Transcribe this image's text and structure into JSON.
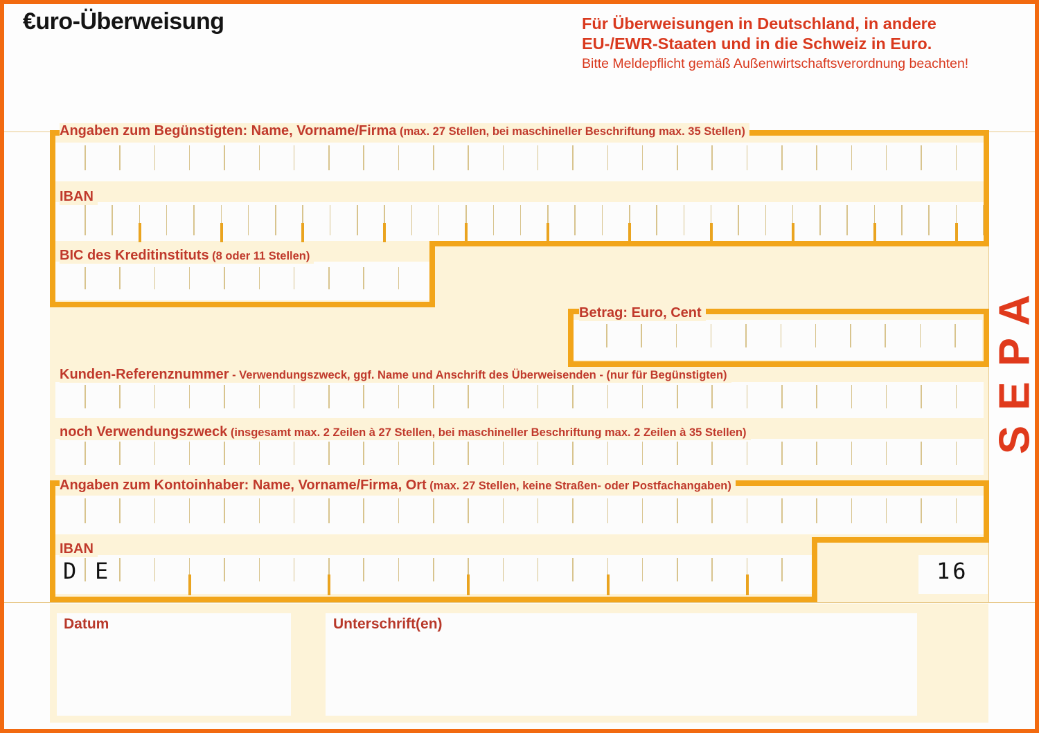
{
  "form": {
    "title": "€uro-Überweisung",
    "notice": {
      "line1": "Für Überweisungen in Deutschland, in andere",
      "line2": "EU-/EWR-Staaten und in die Schweiz in Euro.",
      "line3": "Bitte Meldepflicht gemäß Außenwirtschaftsverordnung beachten!"
    },
    "side_label": "SEPA",
    "colors": {
      "frame": "#f26a10",
      "outline": "#f2a51a",
      "label_red": "#c0392b",
      "band": "#fdf3d8",
      "sepa": "#e03a1c"
    }
  },
  "fields": {
    "beneficiary_name": {
      "label_bold": "Angaben zum Begünstigten:",
      "label_main": " Name, Vorname/Firma",
      "label_hint": " (max. 27 Stellen, bei maschineller Beschriftung max. 35 Stellen)",
      "value": ""
    },
    "beneficiary_iban": {
      "label": "IBAN",
      "value": ""
    },
    "bic": {
      "label_main": "BIC des Kreditinstituts",
      "label_hint": " (8 oder 11 Stellen)",
      "value": ""
    },
    "amount": {
      "label": "Betrag: Euro, Cent",
      "value": ""
    },
    "reference": {
      "label_main": "Kunden-Referenznummer",
      "label_hint": " - Verwendungszweck, ggf. Name und Anschrift des Überweisenden - (nur für Begünstigten)",
      "value": ""
    },
    "purpose_cont": {
      "label_main": "noch Verwendungszweck",
      "label_hint": " (insgesamt max. 2 Zeilen à 27 Stellen, bei maschineller Beschriftung max. 2 Zeilen à 35 Stellen)",
      "value": ""
    },
    "payer_name": {
      "label_bold": "Angaben zum Kontoinhaber:",
      "label_main": " Name, Vorname/Firma, Ort",
      "label_hint": " (max. 27 Stellen, keine Straßen- oder Postfachangaben)",
      "value": ""
    },
    "payer_iban": {
      "label": "IBAN",
      "prefix_1": "D",
      "prefix_2": "E",
      "suffix": "16",
      "value": ""
    },
    "date": {
      "label": "Datum",
      "value": ""
    },
    "signature": {
      "label": "Unterschrift(en)",
      "value": ""
    }
  }
}
